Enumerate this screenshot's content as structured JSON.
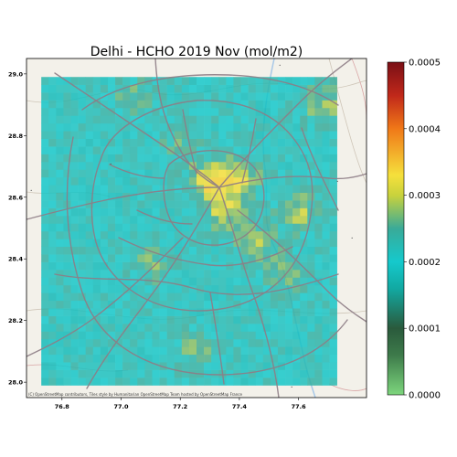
{
  "title": "Delhi - HCHO 2019 Nov (mol/m2)",
  "attribution": "(C) OpenStreetMap contributors, Tiles style by Humanitarian OpenStreetMap Team hosted by OpenStreetMap France",
  "map": {
    "basemap": "humanitarian-openstreetmap",
    "lon_range": [
      76.68,
      77.83
    ],
    "lat_range": [
      27.95,
      29.05
    ],
    "data_lon_range": [
      76.73,
      77.73
    ],
    "data_lat_range": [
      27.99,
      28.99
    ],
    "x_ticks": [
      {
        "value": 76.8,
        "label": "76.8"
      },
      {
        "value": 77.0,
        "label": "77.0"
      },
      {
        "value": 77.2,
        "label": "77.2"
      },
      {
        "value": 77.4,
        "label": "77.4"
      },
      {
        "value": 77.6,
        "label": "77.6"
      }
    ],
    "y_ticks": [
      {
        "value": 28.0,
        "label": "28.0"
      },
      {
        "value": 28.2,
        "label": "28.2"
      },
      {
        "value": 28.4,
        "label": "28.4"
      },
      {
        "value": 28.6,
        "label": "28.6"
      },
      {
        "value": 28.8,
        "label": "28.8"
      },
      {
        "value": 29.0,
        "label": "29.0"
      }
    ],
    "hotspots": [
      {
        "lon": 77.3,
        "lat": 28.66,
        "value": 0.00032
      },
      {
        "lon": 77.4,
        "lat": 28.66,
        "value": 0.0003
      },
      {
        "lon": 77.35,
        "lat": 28.56,
        "value": 0.0003
      },
      {
        "lon": 77.6,
        "lat": 28.55,
        "value": 0.00029
      },
      {
        "lon": 77.45,
        "lat": 28.45,
        "value": 0.00028
      },
      {
        "lon": 77.55,
        "lat": 28.35,
        "value": 0.00027
      },
      {
        "lon": 77.68,
        "lat": 28.9,
        "value": 0.00028
      },
      {
        "lon": 77.05,
        "lat": 28.92,
        "value": 0.00026
      },
      {
        "lon": 77.25,
        "lat": 28.1,
        "value": 0.00026
      },
      {
        "lon": 77.1,
        "lat": 28.38,
        "value": 0.00026
      },
      {
        "lon": 77.2,
        "lat": 28.78,
        "value": 0.00025
      }
    ],
    "base_value": 0.00021
  },
  "colorbar": {
    "label": "",
    "min": 0.0,
    "max": 0.0005,
    "ticks": [
      {
        "value": 0.0,
        "label": "0.0000"
      },
      {
        "value": 0.0001,
        "label": "0.0001"
      },
      {
        "value": 0.0002,
        "label": "0.0002"
      },
      {
        "value": 0.0003,
        "label": "0.0003"
      },
      {
        "value": 0.0004,
        "label": "0.0004"
      },
      {
        "value": 0.0005,
        "label": "0.0005"
      }
    ],
    "stops": [
      {
        "value": 0.0,
        "color": "#7dd67d"
      },
      {
        "value": 6e-05,
        "color": "#3d7a4a"
      },
      {
        "value": 0.0001,
        "color": "#2a5a3c"
      },
      {
        "value": 0.00016,
        "color": "#12a9a2"
      },
      {
        "value": 0.0002,
        "color": "#15c9cc"
      },
      {
        "value": 0.00025,
        "color": "#3aaa98"
      },
      {
        "value": 0.0003,
        "color": "#c9d23c"
      },
      {
        "value": 0.00033,
        "color": "#f5e03c"
      },
      {
        "value": 0.0004,
        "color": "#f07818"
      },
      {
        "value": 0.00045,
        "color": "#c0281a"
      },
      {
        "value": 0.0005,
        "color": "#7a0f16"
      }
    ]
  }
}
